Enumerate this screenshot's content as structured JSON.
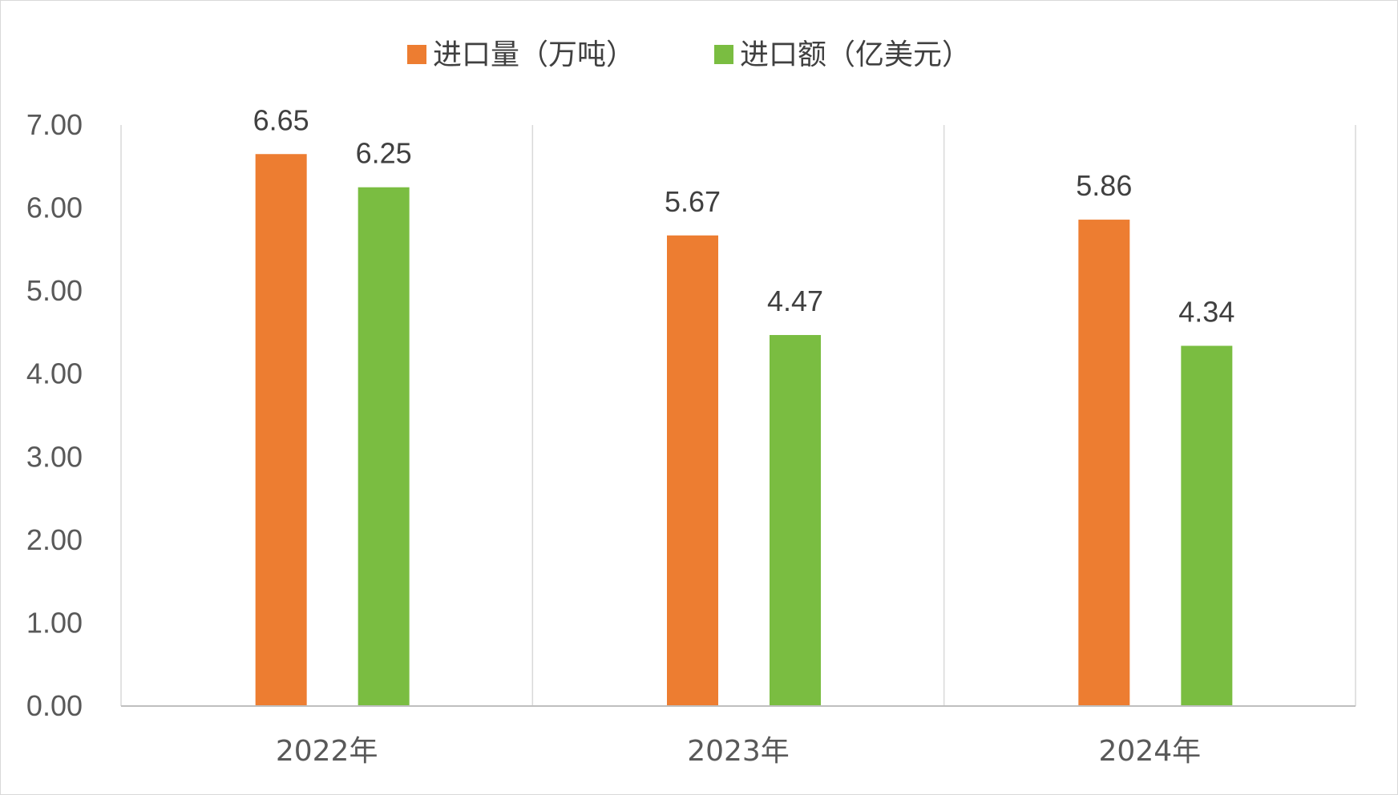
{
  "chart_data": {
    "type": "bar",
    "categories": [
      "2022年",
      "2023年",
      "2024年"
    ],
    "series": [
      {
        "name": "进口量（万吨）",
        "values": [
          6.65,
          5.67,
          5.86
        ],
        "color": "#ED7D31"
      },
      {
        "name": "进口额（亿美元）",
        "values": [
          6.25,
          4.47,
          4.34
        ],
        "color": "#7ABD41"
      }
    ],
    "ylim": [
      0,
      7
    ],
    "yticks": [
      "0.00",
      "1.00",
      "2.00",
      "3.00",
      "4.00",
      "5.00",
      "6.00",
      "7.00"
    ],
    "title": "",
    "xlabel": "",
    "ylabel": "",
    "legend_position": "top-center",
    "grid": "vertical category separators"
  }
}
